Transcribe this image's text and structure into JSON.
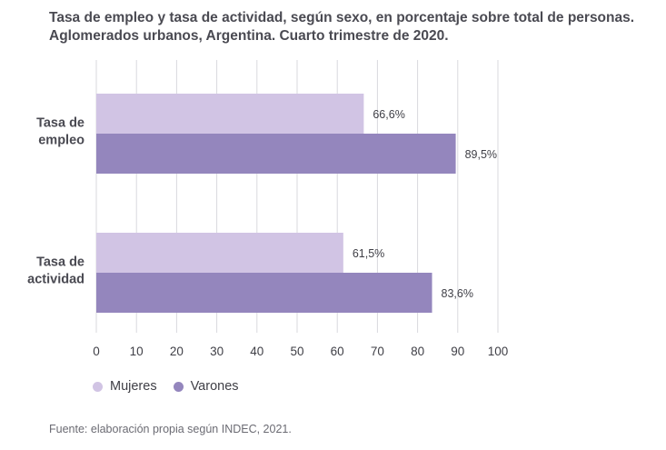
{
  "title_lines": [
    "Tasa de empleo y tasa de actividad, según sexo, en porcentaje sobre total de personas.",
    "Aglomerados urbanos, Argentina. Cuarto trimestre de 2020."
  ],
  "source": "Fuente: elaboración propia según INDEC, 2021.",
  "colors": {
    "mujeres": "#d1c4e4",
    "varones": "#9486bd",
    "grid": "#d9d9de",
    "text": "#3f3f46"
  },
  "legend": [
    {
      "label": "Mujeres",
      "color": "#d1c4e4"
    },
    {
      "label": "Varones",
      "color": "#9486bd"
    }
  ],
  "chart_data": {
    "type": "bar",
    "orientation": "horizontal",
    "categories": [
      [
        "Tasa de",
        "empleo"
      ],
      [
        "Tasa de",
        "actividad"
      ]
    ],
    "series": [
      {
        "name": "Mujeres",
        "values": [
          66.6,
          61.5
        ],
        "labels": [
          "66,6%",
          "61,5%"
        ]
      },
      {
        "name": "Varones",
        "values": [
          89.5,
          83.6
        ],
        "labels": [
          "89,5%",
          "83,6%"
        ]
      }
    ],
    "xlim": [
      0,
      100
    ],
    "xticks": [
      0,
      10,
      20,
      30,
      40,
      50,
      60,
      70,
      80,
      90,
      100
    ],
    "grid": true,
    "legend_position": "bottom-left"
  }
}
